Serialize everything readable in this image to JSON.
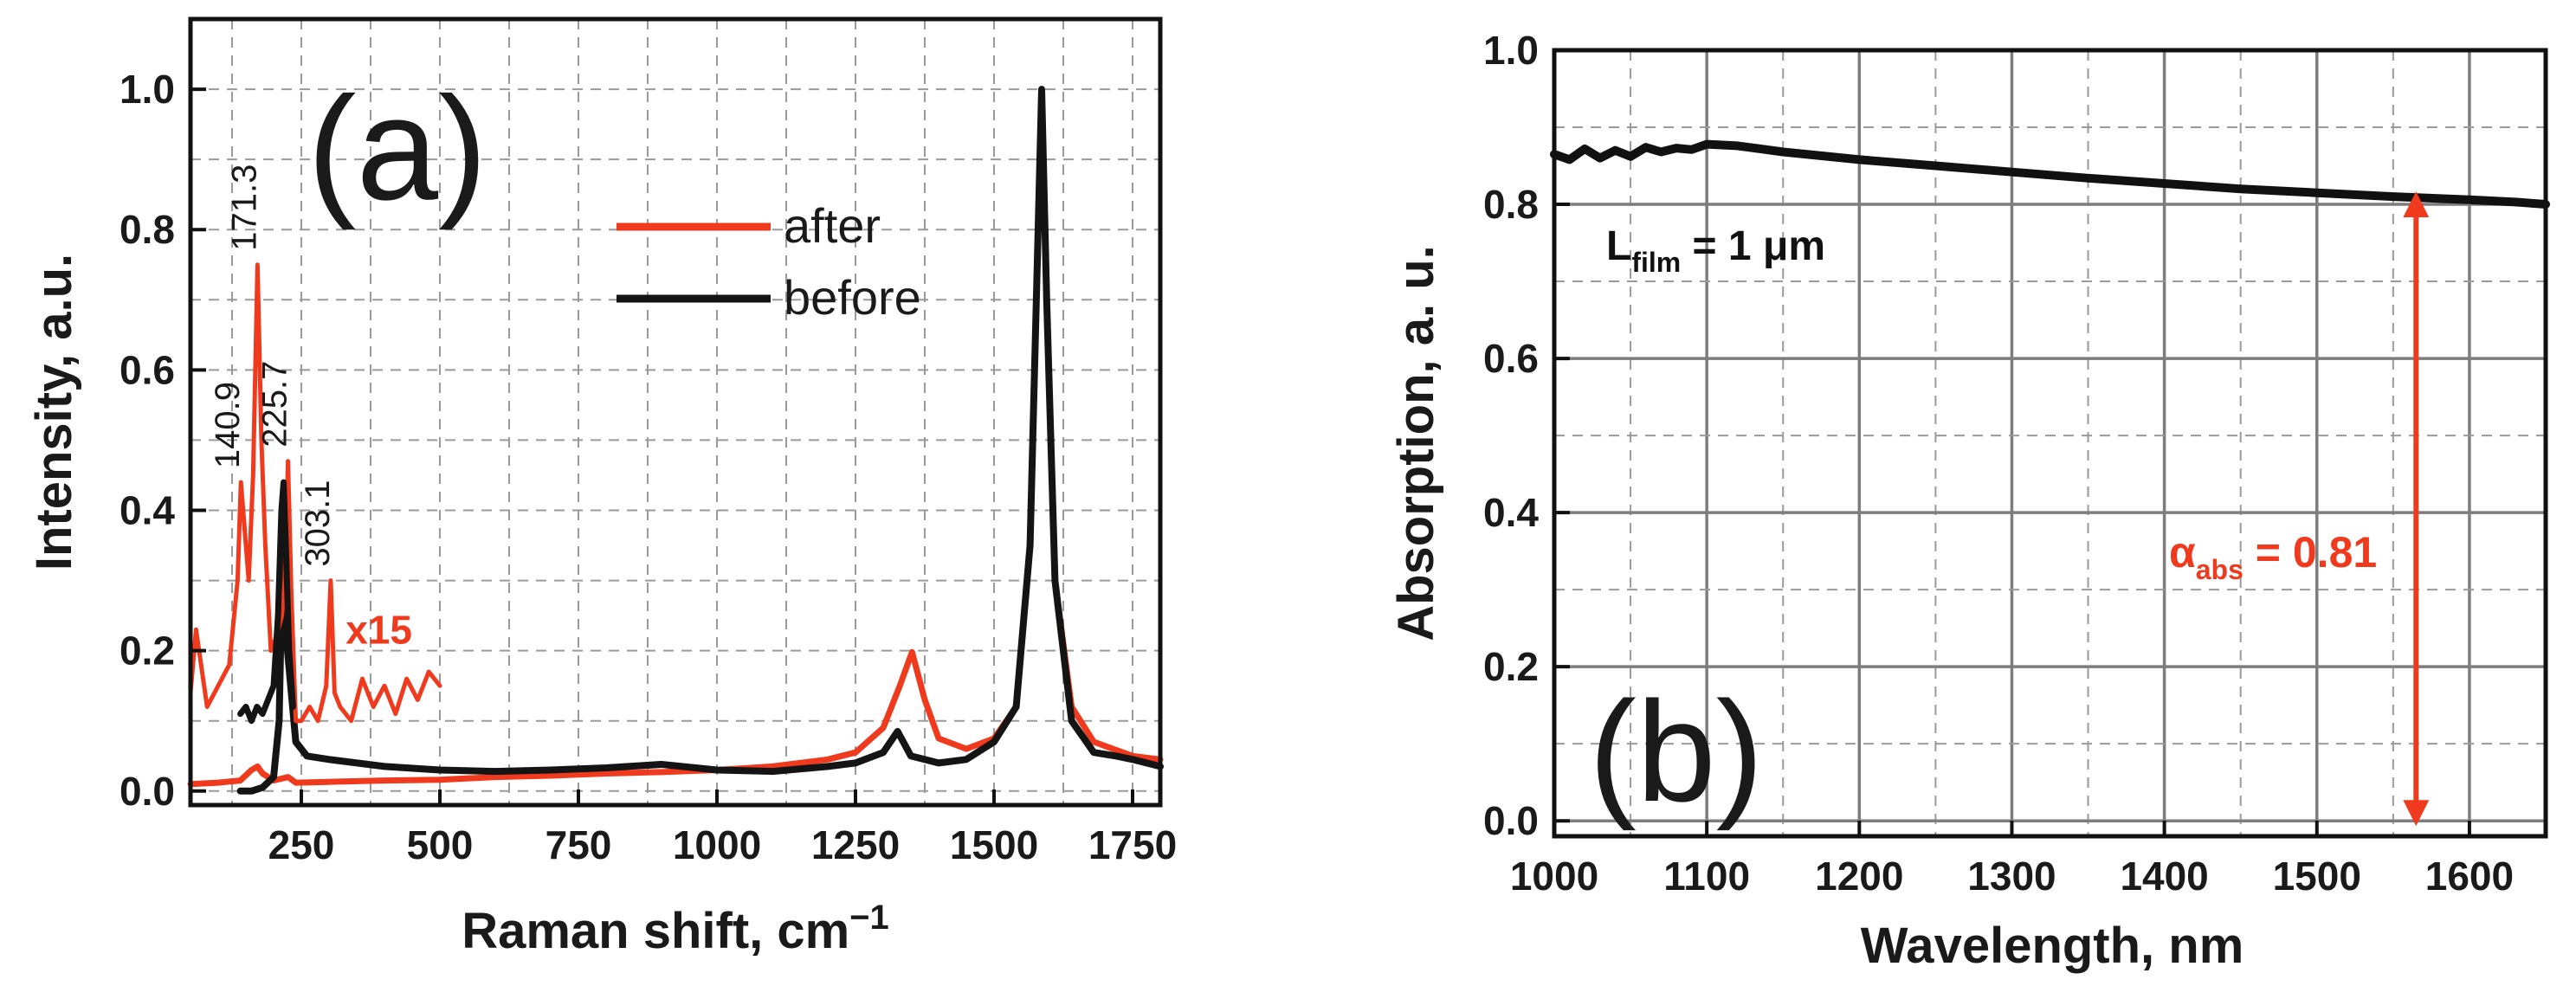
{
  "chart_data": [
    {
      "panel_label": "(a)",
      "type": "line",
      "xlabel": "Raman shift, cm",
      "xlabel_sup": "−1",
      "ylabel": "Intensity, a.u.",
      "xlim": [
        50,
        1800
      ],
      "ylim": [
        -0.02,
        1.1
      ],
      "xticks": [
        250,
        500,
        750,
        1000,
        1250,
        1500,
        1750
      ],
      "xtick_labels": [
        "250",
        "500",
        "750",
        "1000",
        "1250",
        "1500",
        "1750"
      ],
      "yticks": [
        0.0,
        0.2,
        0.4,
        0.6,
        0.8,
        1.0
      ],
      "ytick_labels": [
        "0.0",
        "0.2",
        "0.4",
        "0.6",
        "0.8",
        "1.0"
      ],
      "grid": true,
      "legend": {
        "position": "upper-middle",
        "entries": [
          "after",
          "before"
        ]
      },
      "series": [
        {
          "name": "after",
          "color": "#f03a1e",
          "x": [
            50,
            100,
            140,
            160,
            171,
            180,
            200,
            226,
            240,
            300,
            400,
            500,
            600,
            700,
            800,
            900,
            1000,
            1100,
            1200,
            1250,
            1300,
            1330,
            1352,
            1375,
            1400,
            1450,
            1500,
            1540,
            1565,
            1578,
            1586,
            1595,
            1610,
            1640,
            1680,
            1750,
            1800
          ],
          "y": [
            0.01,
            0.012,
            0.015,
            0.03,
            0.035,
            0.025,
            0.015,
            0.02,
            0.012,
            0.013,
            0.015,
            0.016,
            0.02,
            0.022,
            0.025,
            0.027,
            0.03,
            0.035,
            0.045,
            0.055,
            0.09,
            0.15,
            0.198,
            0.13,
            0.075,
            0.06,
            0.075,
            0.12,
            0.35,
            0.75,
            1.0,
            0.7,
            0.3,
            0.12,
            0.07,
            0.05,
            0.045
          ]
        },
        {
          "name": "before",
          "color": "#141414",
          "x": [
            140,
            160,
            180,
            200,
            210,
            218,
            225,
            240,
            260,
            300,
            400,
            500,
            600,
            700,
            800,
            900,
            1000,
            1100,
            1200,
            1250,
            1300,
            1326,
            1350,
            1400,
            1450,
            1500,
            1540,
            1565,
            1578,
            1586,
            1595,
            1610,
            1640,
            1680,
            1720,
            1750,
            1800
          ],
          "y": [
            0.0,
            0.0,
            0.005,
            0.02,
            0.1,
            0.42,
            0.2,
            0.07,
            0.05,
            0.045,
            0.035,
            0.03,
            0.028,
            0.03,
            0.033,
            0.038,
            0.03,
            0.028,
            0.035,
            0.04,
            0.055,
            0.085,
            0.05,
            0.04,
            0.045,
            0.07,
            0.12,
            0.35,
            0.75,
            1.0,
            0.7,
            0.3,
            0.1,
            0.055,
            0.05,
            0.045,
            0.035
          ]
        },
        {
          "name": "after x15",
          "color": "#f03a1e",
          "x": [
            50,
            60,
            80,
            100,
            120,
            135,
            141,
            147,
            155,
            163,
            171,
            178,
            185,
            195,
            205,
            215,
            220,
            226,
            232,
            240,
            250,
            265,
            280,
            295,
            303,
            310,
            320,
            340,
            360,
            380,
            400,
            420,
            440,
            460,
            480,
            500
          ],
          "y": [
            0.14,
            0.23,
            0.12,
            0.15,
            0.18,
            0.3,
            0.44,
            0.38,
            0.3,
            0.45,
            0.75,
            0.5,
            0.35,
            0.2,
            0.22,
            0.25,
            0.3,
            0.47,
            0.28,
            0.1,
            0.1,
            0.12,
            0.1,
            0.15,
            0.3,
            0.14,
            0.12,
            0.1,
            0.16,
            0.12,
            0.15,
            0.11,
            0.16,
            0.13,
            0.17,
            0.15
          ]
        },
        {
          "name": "before x15",
          "color": "#141414",
          "x": [
            140,
            150,
            160,
            170,
            180,
            190,
            200,
            208,
            214,
            218,
            222,
            228,
            235
          ],
          "y": [
            0.11,
            0.12,
            0.1,
            0.12,
            0.11,
            0.13,
            0.15,
            0.25,
            0.4,
            0.44,
            0.35,
            0.2,
            0.12
          ]
        }
      ],
      "annotations": [
        {
          "text": "140.9",
          "x": 141,
          "y": 0.44,
          "color": "#1a1a1a"
        },
        {
          "text": "171.3",
          "x": 171,
          "y": 0.75,
          "color": "#1a1a1a"
        },
        {
          "text": "225.7",
          "x": 226,
          "y": 0.47,
          "color": "#1a1a1a"
        },
        {
          "text": "303.1",
          "x": 303,
          "y": 0.3,
          "color": "#1a1a1a"
        },
        {
          "text": "x15",
          "x": 330,
          "y": 0.21,
          "color": "#f03a1e"
        }
      ]
    },
    {
      "panel_label": "(b)",
      "type": "line",
      "xlabel": "Wavelength, nm",
      "ylabel": "Absorption, a. u.",
      "xlim": [
        1000,
        1650
      ],
      "ylim": [
        -0.02,
        1.0
      ],
      "xticks": [
        1000,
        1100,
        1200,
        1300,
        1400,
        1500,
        1600
      ],
      "xtick_labels": [
        "1000",
        "1100",
        "1200",
        "1300",
        "1400",
        "1500",
        "1600"
      ],
      "yticks": [
        0.0,
        0.2,
        0.4,
        0.6,
        0.8,
        1.0
      ],
      "ytick_labels": [
        "0.0",
        "0.2",
        "0.4",
        "0.6",
        "0.8",
        "1.0"
      ],
      "grid": true,
      "series": [
        {
          "name": "absorption",
          "color": "#111111",
          "x": [
            1000,
            1010,
            1020,
            1030,
            1040,
            1050,
            1060,
            1070,
            1080,
            1090,
            1100,
            1120,
            1150,
            1200,
            1250,
            1300,
            1350,
            1400,
            1450,
            1500,
            1550,
            1600,
            1630,
            1650
          ],
          "y": [
            0.865,
            0.858,
            0.872,
            0.86,
            0.87,
            0.862,
            0.874,
            0.868,
            0.873,
            0.871,
            0.878,
            0.876,
            0.868,
            0.858,
            0.85,
            0.842,
            0.834,
            0.827,
            0.82,
            0.815,
            0.81,
            0.806,
            0.803,
            0.8
          ]
        }
      ],
      "annotations": [
        {
          "text_main": "L",
          "text_sub": "film",
          "text_rest": " = 1 μm",
          "x": 1065,
          "y": 0.75,
          "color": "#111111"
        },
        {
          "text_main": "α",
          "text_sub": "abs",
          "text_rest": " = 0.81",
          "x": 1470,
          "y": 0.35,
          "color": "#f03a1e"
        }
      ],
      "arrow": {
        "x": 1565,
        "y_from": 0.0,
        "y_to": 0.81,
        "color": "#f03a1e"
      }
    }
  ]
}
